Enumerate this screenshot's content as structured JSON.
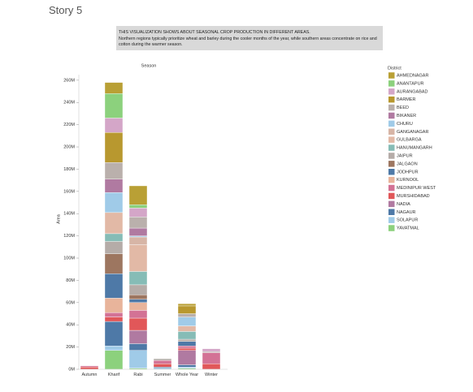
{
  "header": {
    "title": "Story 5"
  },
  "caption": {
    "heading": "THIS VISUALIZATION SHOWS ABOUT SEASONAL CROP PRODUCTION IN DIFFERENT AREAS.",
    "body": "Northern regions typically prioritize wheat and barley during the cooler months of the year, while southern areas concentrate on rice and cotton during the warmer season."
  },
  "chart_data": {
    "type": "stacked_bar",
    "title": "Season",
    "y_label": "Area",
    "legend_title": "District",
    "legend": "right",
    "categories": [
      "Autumn",
      "Kharif",
      "Rabi",
      "Summer",
      "Whole Year",
      "Winter"
    ],
    "ylim": [
      0,
      265000000
    ],
    "yticks": [
      {
        "value": 0,
        "label": "0M"
      },
      {
        "value": 20000000,
        "label": "20M"
      },
      {
        "value": 40000000,
        "label": "40M"
      },
      {
        "value": 60000000,
        "label": "60M"
      },
      {
        "value": 80000000,
        "label": "80M"
      },
      {
        "value": 100000000,
        "label": "100M"
      },
      {
        "value": 120000000,
        "label": "120M"
      },
      {
        "value": 140000000,
        "label": "140M"
      },
      {
        "value": 160000000,
        "label": "160M"
      },
      {
        "value": 180000000,
        "label": "180M"
      },
      {
        "value": 200000000,
        "label": "200M"
      },
      {
        "value": 220000000,
        "label": "220M"
      },
      {
        "value": 240000000,
        "label": "240M"
      },
      {
        "value": 260000000,
        "label": "260M"
      }
    ],
    "grid": false,
    "series": [
      {
        "name": "AHMEDNAGAR",
        "color": "#b9a035",
        "values": [
          null,
          10000000,
          17000000,
          null,
          2000000,
          null
        ]
      },
      {
        "name": "ANANTAPUR",
        "color": "#8cd17d",
        "values": [
          null,
          22000000,
          3000000,
          null,
          null,
          null
        ]
      },
      {
        "name": "AURANGABAD",
        "color": "#d4a6c8",
        "values": [
          null,
          13000000,
          8000000,
          null,
          null,
          2500000
        ]
      },
      {
        "name": "BARMER",
        "color": "#b8982f",
        "values": [
          null,
          27000000,
          null,
          null,
          7000000,
          null
        ]
      },
      {
        "name": "BEED",
        "color": "#bab0ac",
        "values": [
          null,
          15000000,
          10000000,
          null,
          3000000,
          null
        ]
      },
      {
        "name": "BIKANER",
        "color": "#b07aa1",
        "values": [
          null,
          12000000,
          7000000,
          null,
          null,
          null
        ]
      },
      {
        "name": "CHURU",
        "color": "#a0cbe8",
        "values": [
          null,
          18000000,
          1000000,
          null,
          8000000,
          null
        ]
      },
      {
        "name": "GANGANAGAR",
        "color": "#d7b5a6",
        "values": [
          null,
          null,
          7000000,
          null,
          null,
          null
        ]
      },
      {
        "name": "GULBARGA",
        "color": "#e2b9a6",
        "values": [
          null,
          19000000,
          24000000,
          null,
          5000000,
          null
        ]
      },
      {
        "name": "HANUMANGARH",
        "color": "#86bcb6",
        "values": [
          null,
          7000000,
          12000000,
          null,
          7000000,
          null
        ]
      },
      {
        "name": "JAIPUR",
        "color": "#b5aca8",
        "values": [
          null,
          11000000,
          9000000,
          1500000,
          2000000,
          1000000
        ]
      },
      {
        "name": "JALGAON",
        "color": "#9d7660",
        "values": [
          null,
          18000000,
          4000000,
          null,
          null,
          null
        ]
      },
      {
        "name": "JODHPUR",
        "color": "#4e79a7",
        "values": [
          null,
          22000000,
          3000000,
          null,
          4000000,
          null
        ]
      },
      {
        "name": "KURNOOL",
        "color": "#e8b49b",
        "values": [
          null,
          13000000,
          7000000,
          null,
          null,
          null
        ]
      },
      {
        "name": "MEDINIPUR WEST",
        "color": "#d37295",
        "values": [
          1000000,
          4000000,
          7000000,
          3000000,
          2000000,
          10000000
        ]
      },
      {
        "name": "MURSHIDABAD",
        "color": "#e15759",
        "values": [
          2000000,
          4000000,
          11000000,
          3000000,
          2000000,
          5000000
        ]
      },
      {
        "name": "NADIA",
        "color": "#b07aa1",
        "values": [
          null,
          null,
          12000000,
          null,
          13000000,
          null
        ]
      },
      {
        "name": "NAGAUR",
        "color": "#4e79a7",
        "values": [
          null,
          22000000,
          6000000,
          1000000,
          2000000,
          null
        ]
      },
      {
        "name": "SOLAPUR",
        "color": "#a0cbe8",
        "values": [
          null,
          4000000,
          16000000,
          1000000,
          1000000,
          null
        ]
      },
      {
        "name": "YAVATMAL",
        "color": "#8cd17d",
        "values": [
          null,
          17000000,
          1000000,
          null,
          1000000,
          null
        ]
      }
    ]
  }
}
